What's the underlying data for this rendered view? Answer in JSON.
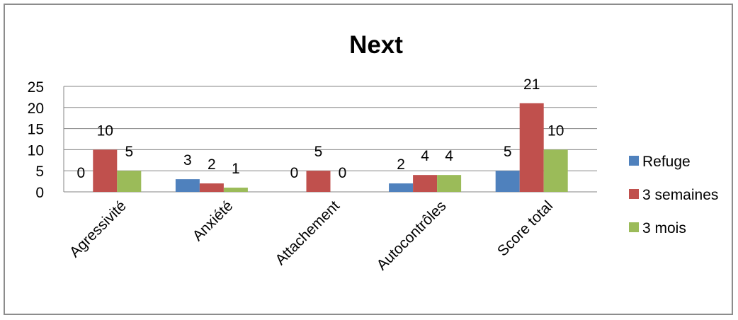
{
  "chart_data": {
    "type": "bar",
    "title": "Next",
    "categories": [
      "Agressivité",
      "Anxiété",
      "Attachement",
      "Autocontrôles",
      "Score total"
    ],
    "series": [
      {
        "name": "Refuge",
        "color": "#4f81bd",
        "values": [
          0,
          3,
          0,
          2,
          5
        ]
      },
      {
        "name": "3 semaines",
        "color": "#c0504d",
        "values": [
          10,
          2,
          5,
          4,
          21
        ]
      },
      {
        "name": "3 mois",
        "color": "#9bbb59",
        "values": [
          5,
          1,
          0,
          4,
          10
        ]
      }
    ],
    "y_ticks": [
      "0",
      "5",
      "10",
      "15",
      "20",
      "25"
    ],
    "ylim": [
      0,
      25
    ],
    "grid": true,
    "data_labels": true,
    "legend_position": "right"
  }
}
